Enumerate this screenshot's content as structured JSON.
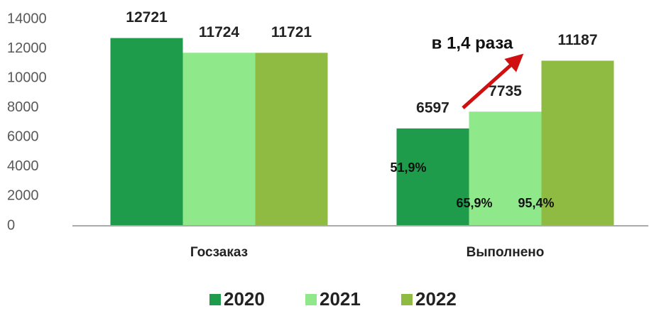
{
  "chart_data": {
    "type": "bar",
    "categories": [
      "Госзаказ",
      "Выполнено"
    ],
    "series": [
      {
        "name": "2020",
        "color": "#1f9b4c",
        "values": [
          12721,
          6597
        ]
      },
      {
        "name": "2021",
        "color": "#8fe98a",
        "values": [
          11724,
          7735
        ]
      },
      {
        "name": "2022",
        "color": "#8fbb42",
        "values": [
          11721,
          11187
        ]
      }
    ],
    "ylim": [
      0,
      14000
    ],
    "yticks": [
      0,
      2000,
      4000,
      6000,
      8000,
      10000,
      12000,
      14000
    ],
    "grid": false,
    "legend": "bottom",
    "annotations": [
      "51,9%",
      "65,9%",
      "95,4%",
      "в 1,4 раза"
    ]
  }
}
